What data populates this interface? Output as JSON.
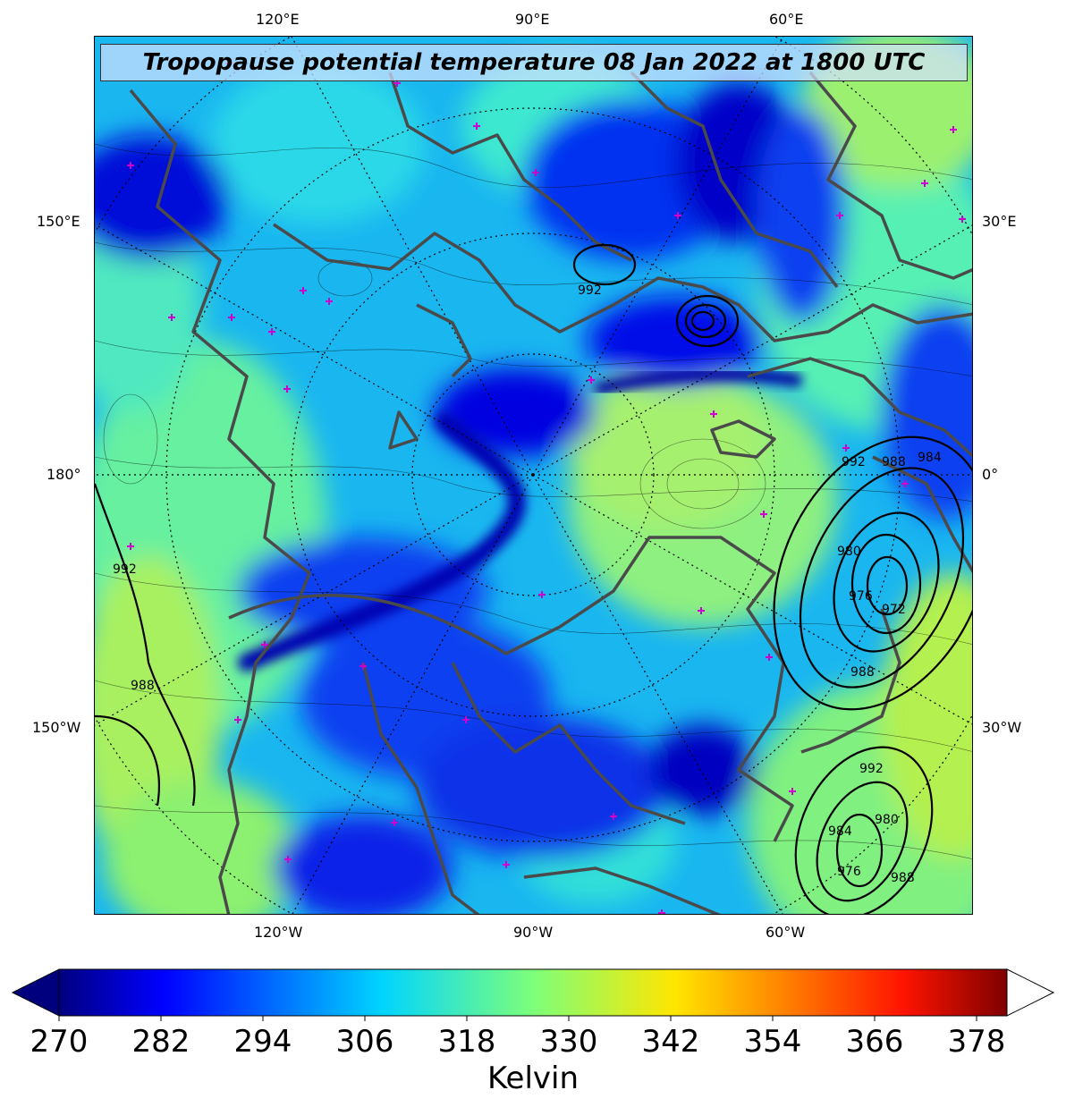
{
  "title": "Tropopause potential temperature 08 Jan 2022 at 1800 UTC",
  "lon_labels": {
    "top": [
      "120°E",
      "90°E",
      "60°E"
    ],
    "bottom": [
      "120°W",
      "90°W",
      "60°W"
    ],
    "left": [
      "150°E",
      "180°",
      "150°W"
    ],
    "right": [
      "30°E",
      "0°",
      "30°W"
    ]
  },
  "colorbar": {
    "label": "Kelvin",
    "ticks": [
      "270",
      "282",
      "294",
      "306",
      "318",
      "330",
      "342",
      "354",
      "366",
      "378"
    ],
    "range": [
      270,
      382
    ],
    "extend": "both",
    "colormap": "jet"
  },
  "pressure_contour_labels": [
    "992",
    "992",
    "988",
    "984",
    "980",
    "976",
    "972",
    "988",
    "988",
    "992",
    "984",
    "980",
    "976",
    "992",
    "988"
  ],
  "colors": {
    "coastline": "#4a4a4a",
    "marker": "#cc00cc",
    "pressure_contour": "#000000"
  }
}
